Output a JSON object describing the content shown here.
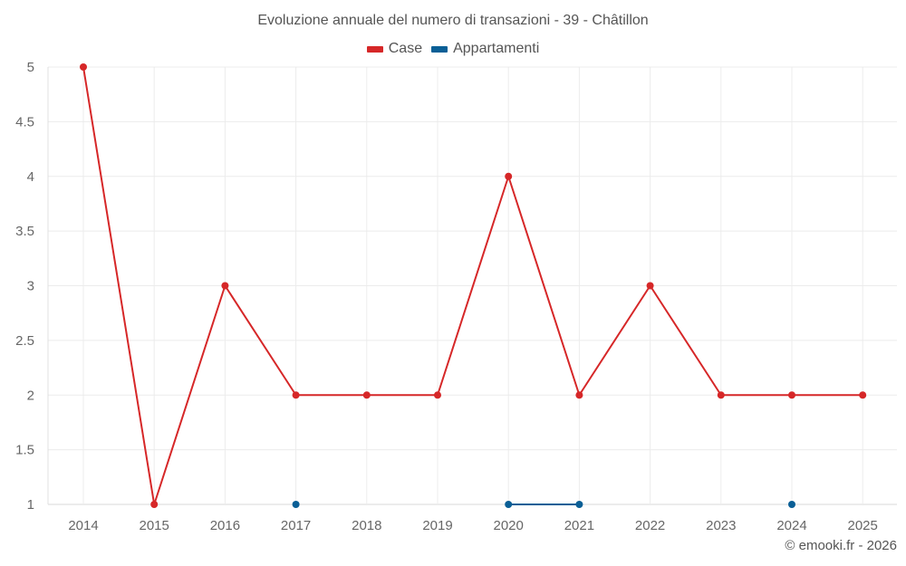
{
  "title": "Evoluzione annuale del numero di transazioni - 39 - Châtillon",
  "legend": [
    {
      "label": "Case",
      "color": "#d62728"
    },
    {
      "label": "Appartamenti",
      "color": "#0a5f96"
    }
  ],
  "credit": "© emooki.fr - 2026",
  "chart_data": {
    "type": "line",
    "title": "Evoluzione annuale del numero di transazioni - 39 - Châtillon",
    "xlabel": "",
    "ylabel": "",
    "categories": [
      "2014",
      "2015",
      "2016",
      "2017",
      "2018",
      "2019",
      "2020",
      "2021",
      "2022",
      "2023",
      "2024",
      "2025"
    ],
    "series": [
      {
        "name": "Case",
        "color": "#d62728",
        "values": [
          5,
          1,
          3,
          2,
          2,
          2,
          4,
          2,
          3,
          2,
          2,
          2
        ]
      },
      {
        "name": "Appartamenti",
        "color": "#0a5f96",
        "values": [
          null,
          null,
          null,
          1,
          null,
          null,
          1,
          1,
          null,
          null,
          1,
          null
        ]
      }
    ],
    "ylim": [
      1,
      5
    ],
    "yticks": [
      "1",
      "1.5",
      "2",
      "2.5",
      "3",
      "3.5",
      "4",
      "4.5",
      "5"
    ],
    "grid": true,
    "legend_position": "top"
  }
}
